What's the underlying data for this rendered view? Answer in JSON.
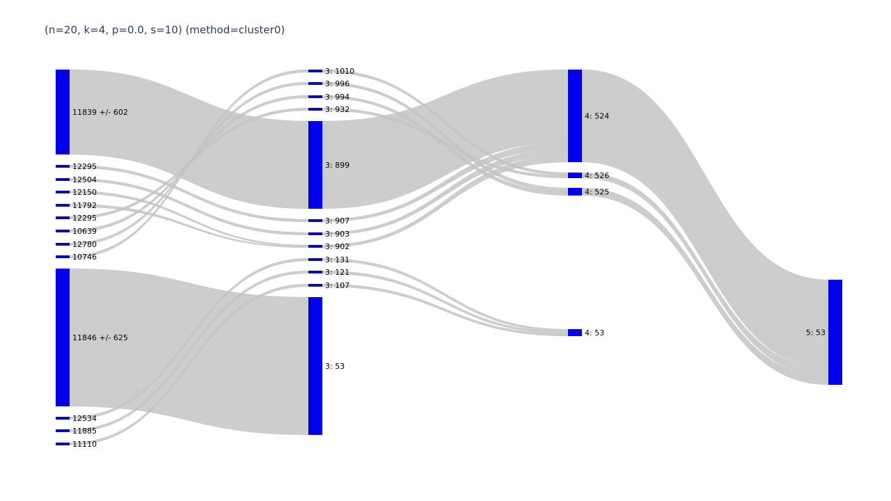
{
  "title": "(n=20, k=4, p=0.0, s=10) (method=cluster0)",
  "colors": {
    "node": "#0000ee",
    "node_small": "#0a0ab4",
    "link": "#c4c4c4",
    "title": "#2a3f5f"
  },
  "chart_data": {
    "type": "sankey",
    "columns": 4,
    "nodes": [
      {
        "id": "a0",
        "label": "11839 +/- 602",
        "column": 0
      },
      {
        "id": "a1",
        "label": "12295",
        "column": 0
      },
      {
        "id": "a2",
        "label": "12504",
        "column": 0
      },
      {
        "id": "a3",
        "label": "12150",
        "column": 0
      },
      {
        "id": "a4",
        "label": "11792",
        "column": 0
      },
      {
        "id": "a5",
        "label": "12295",
        "column": 0
      },
      {
        "id": "a6",
        "label": "10639",
        "column": 0
      },
      {
        "id": "a7",
        "label": "12780",
        "column": 0
      },
      {
        "id": "a8",
        "label": "10746",
        "column": 0
      },
      {
        "id": "a9",
        "label": "11846 +/- 625",
        "column": 0
      },
      {
        "id": "a10",
        "label": "12534",
        "column": 0
      },
      {
        "id": "a11",
        "label": "11885",
        "column": 0
      },
      {
        "id": "a12",
        "label": "11110",
        "column": 0
      },
      {
        "id": "b0",
        "label": "3: 1010",
        "column": 1
      },
      {
        "id": "b1",
        "label": "3: 996",
        "column": 1
      },
      {
        "id": "b2",
        "label": "3: 994",
        "column": 1
      },
      {
        "id": "b3",
        "label": "3: 932",
        "column": 1
      },
      {
        "id": "b4",
        "label": "3: 899",
        "column": 1
      },
      {
        "id": "b5",
        "label": "3: 907",
        "column": 1
      },
      {
        "id": "b6",
        "label": "3: 903",
        "column": 1
      },
      {
        "id": "b7",
        "label": "3: 902",
        "column": 1
      },
      {
        "id": "b8",
        "label": "3: 131",
        "column": 1
      },
      {
        "id": "b9",
        "label": "3: 121",
        "column": 1
      },
      {
        "id": "b10",
        "label": "3: 107",
        "column": 1
      },
      {
        "id": "b11",
        "label": "3: 53",
        "column": 1
      },
      {
        "id": "c0",
        "label": "4: 524",
        "column": 2
      },
      {
        "id": "c1",
        "label": "4: 526",
        "column": 2
      },
      {
        "id": "c2",
        "label": "4: 525",
        "column": 2
      },
      {
        "id": "c3",
        "label": "4: 53",
        "column": 2
      },
      {
        "id": "d0",
        "label": "5: 53",
        "column": 3
      }
    ],
    "links": [
      {
        "source": "a0",
        "target": "b4",
        "value": 11
      },
      {
        "source": "a1",
        "target": "b5",
        "value": 1
      },
      {
        "source": "a2",
        "target": "b6",
        "value": 1
      },
      {
        "source": "a3",
        "target": "b7",
        "value": 1
      },
      {
        "source": "a4",
        "target": "b7",
        "value": 1
      },
      {
        "source": "a5",
        "target": "b3",
        "value": 1
      },
      {
        "source": "a6",
        "target": "b2",
        "value": 1
      },
      {
        "source": "a7",
        "target": "b1",
        "value": 1
      },
      {
        "source": "a8",
        "target": "b0",
        "value": 1
      },
      {
        "source": "a9",
        "target": "b11",
        "value": 11
      },
      {
        "source": "a10",
        "target": "b8",
        "value": 1
      },
      {
        "source": "a11",
        "target": "b9",
        "value": 1
      },
      {
        "source": "a12",
        "target": "b10",
        "value": 1
      },
      {
        "source": "b4",
        "target": "c0",
        "value": 11
      },
      {
        "source": "b0",
        "target": "c1",
        "value": 1
      },
      {
        "source": "b1",
        "target": "c2",
        "value": 1
      },
      {
        "source": "b2",
        "target": "c2",
        "value": 1
      },
      {
        "source": "b3",
        "target": "c1",
        "value": 1
      },
      {
        "source": "b5",
        "target": "c0",
        "value": 1
      },
      {
        "source": "b6",
        "target": "c0",
        "value": 1
      },
      {
        "source": "b7",
        "target": "c0",
        "value": 1
      },
      {
        "source": "b8",
        "target": "c3",
        "value": 1
      },
      {
        "source": "b9",
        "target": "c3",
        "value": 1
      },
      {
        "source": "b10",
        "target": "c3",
        "value": 1
      },
      {
        "source": "c0",
        "target": "d0",
        "value": 11
      },
      {
        "source": "c1",
        "target": "d0",
        "value": 1
      },
      {
        "source": "c2",
        "target": "d0",
        "value": 1
      }
    ]
  }
}
